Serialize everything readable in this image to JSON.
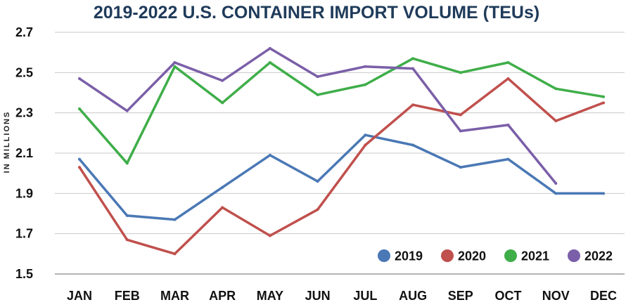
{
  "chart_data": {
    "type": "line",
    "title": "2019-2022 U.S. CONTAINER IMPORT VOLUME (TEUs)",
    "ylabel": "IN MILLIONS",
    "xlabel": "",
    "categories": [
      "JAN",
      "FEB",
      "MAR",
      "APR",
      "MAY",
      "JUN",
      "JUL",
      "AUG",
      "SEP",
      "OCT",
      "NOV",
      "DEC"
    ],
    "ylim": [
      1.5,
      2.7
    ],
    "yticks": [
      "2.7",
      "2.5",
      "2.3",
      "2.1",
      "1.9",
      "1.7",
      "1.5"
    ],
    "grid": true,
    "legend_position": "bottom-right",
    "series": [
      {
        "name": "2019",
        "color": "#4a78b5",
        "values": [
          2.07,
          1.79,
          1.77,
          1.93,
          2.09,
          1.96,
          2.19,
          2.14,
          2.03,
          2.07,
          1.9,
          1.9
        ]
      },
      {
        "name": "2020",
        "color": "#c0504d",
        "values": [
          2.03,
          1.67,
          1.6,
          1.83,
          1.69,
          1.82,
          2.14,
          2.34,
          2.29,
          2.47,
          2.26,
          2.35
        ]
      },
      {
        "name": "2021",
        "color": "#3fae49",
        "values": [
          2.32,
          2.05,
          2.53,
          2.35,
          2.55,
          2.39,
          2.44,
          2.57,
          2.5,
          2.55,
          2.42,
          2.38
        ]
      },
      {
        "name": "2022",
        "color": "#7b5fa8",
        "values": [
          2.47,
          2.31,
          2.55,
          2.46,
          2.62,
          2.48,
          2.53,
          2.52,
          2.21,
          2.24,
          1.95,
          null
        ]
      }
    ]
  }
}
